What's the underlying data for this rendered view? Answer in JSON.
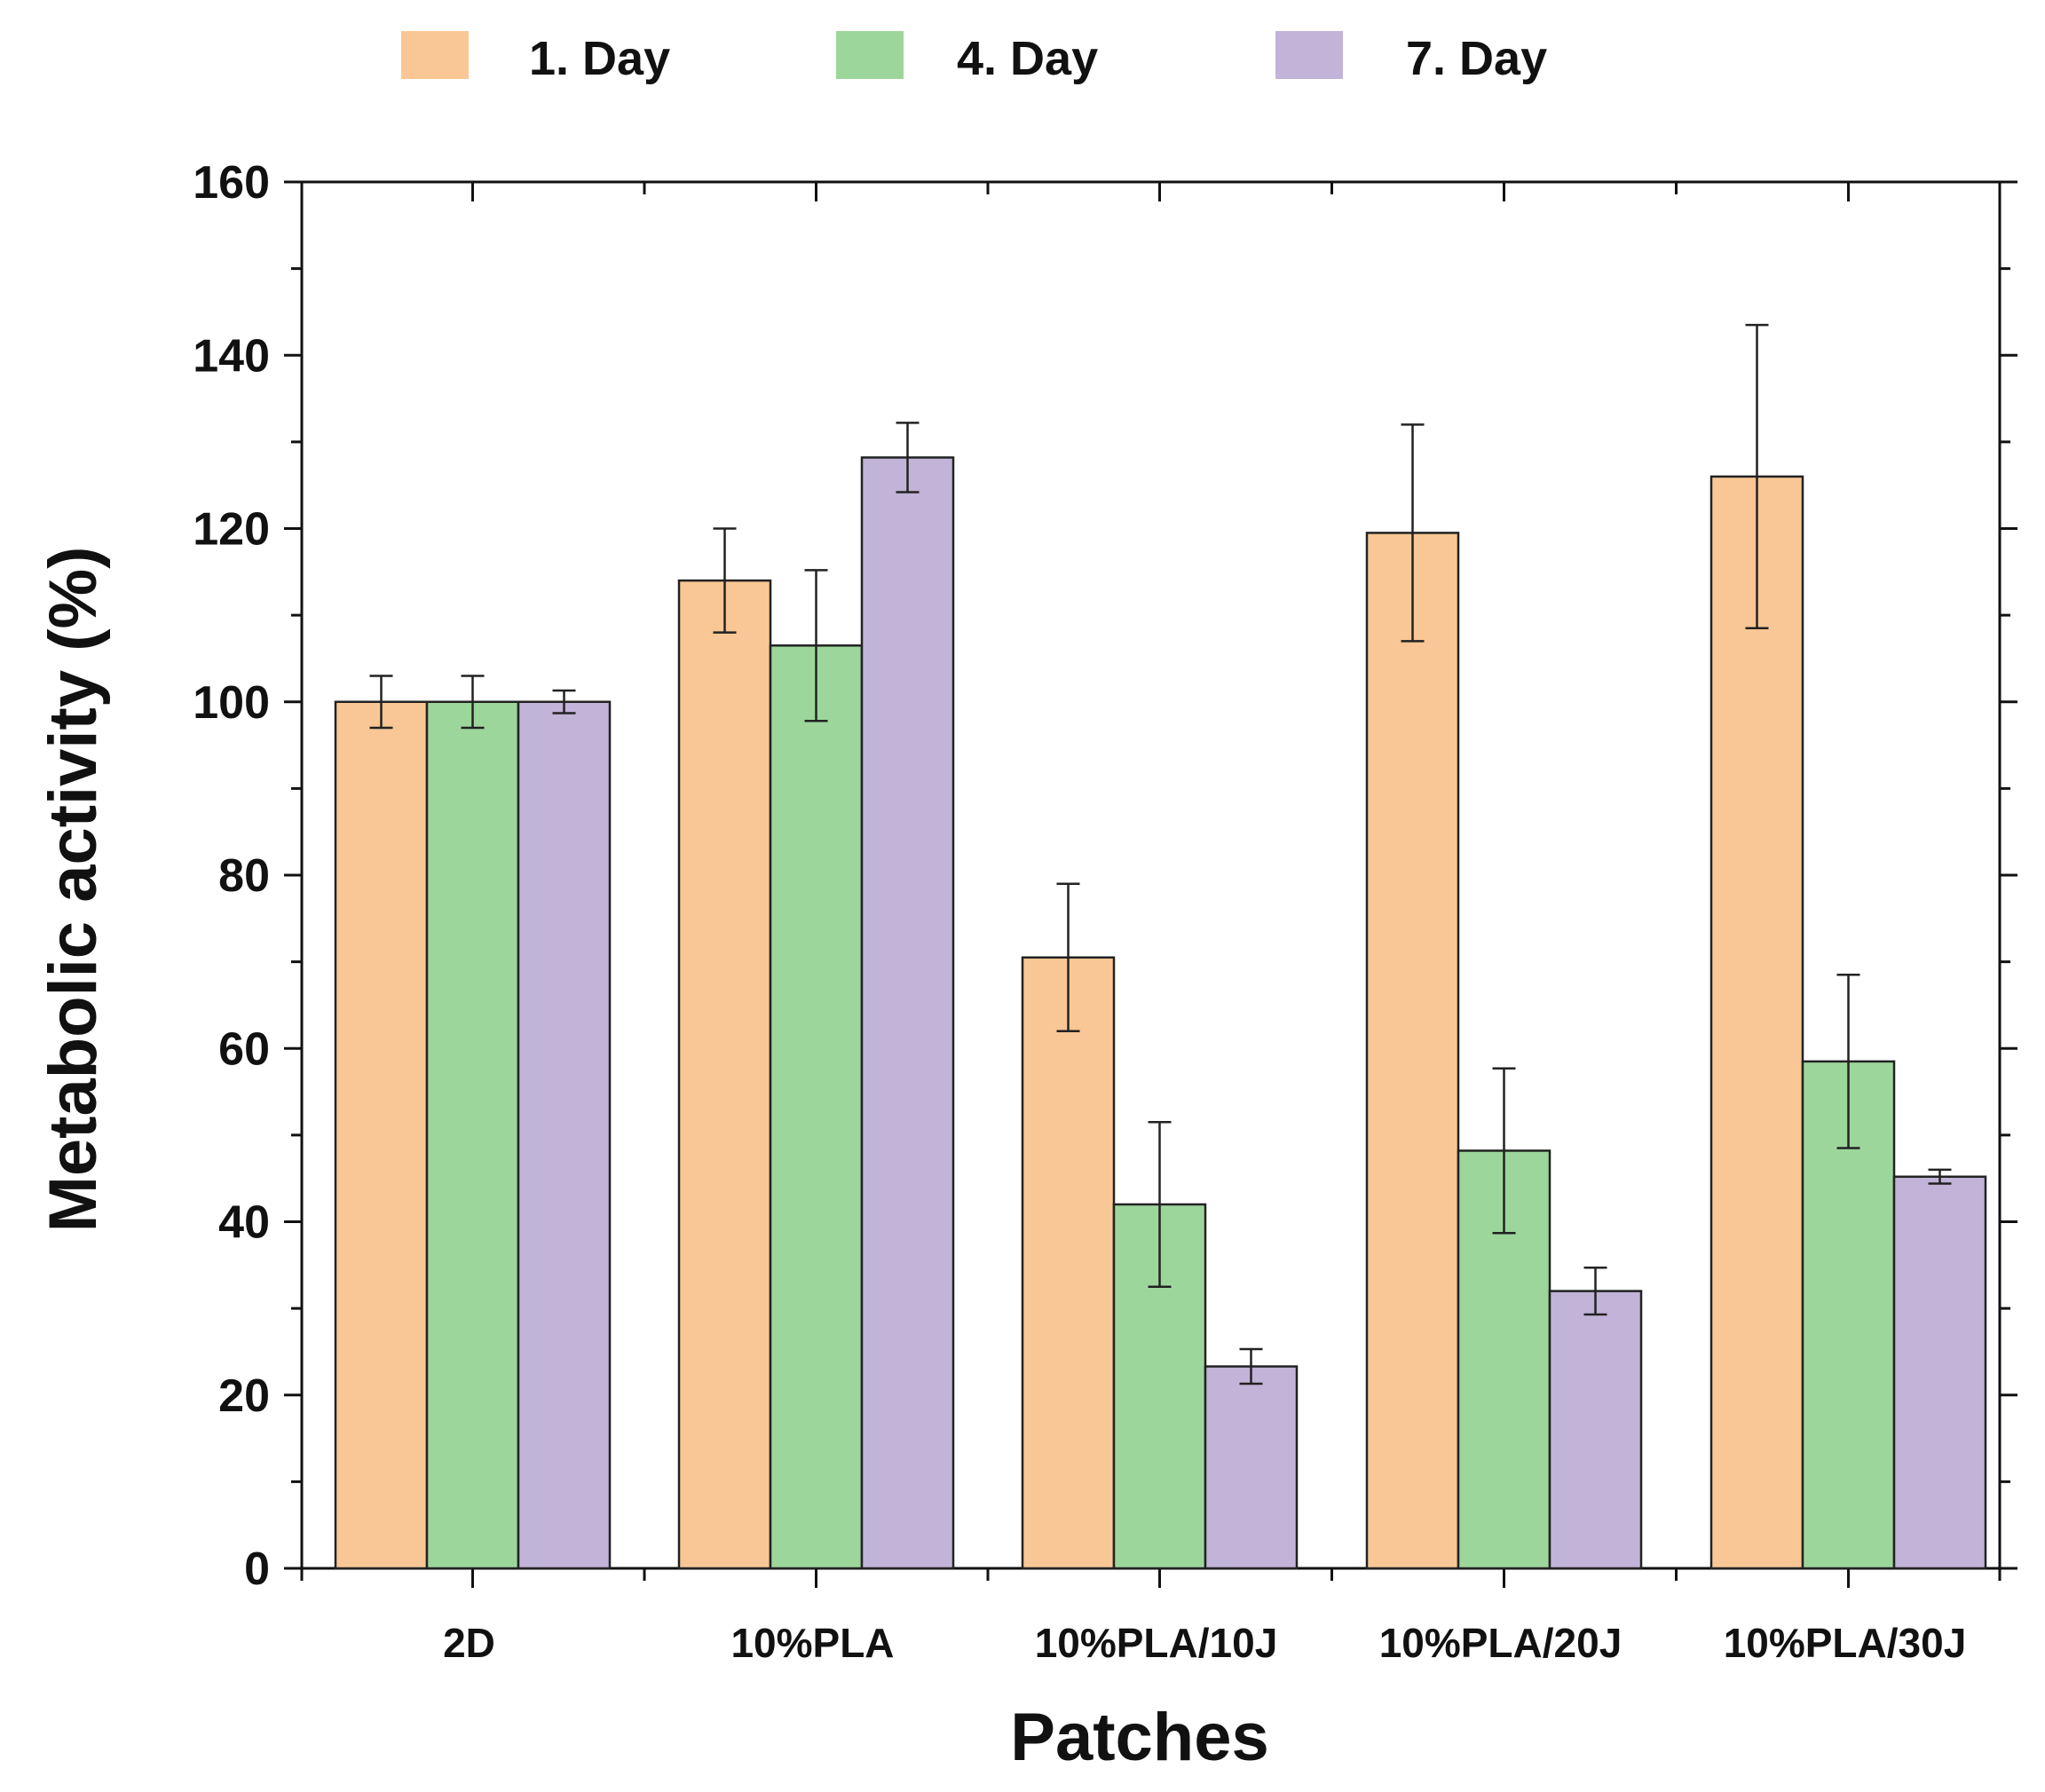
{
  "chart_data": {
    "type": "bar",
    "title": "",
    "xlabel": "Patches",
    "ylabel": "Metabolic activity (%)",
    "ylim": [
      0,
      160
    ],
    "yticks": [
      "0",
      "20",
      "40",
      "60",
      "80",
      "100",
      "120",
      "140",
      "160"
    ],
    "categories": [
      "2D",
      "10%PLA",
      "10%PLA/10J",
      "10%PLA/20J",
      "10%PLA/30J"
    ],
    "legend_position": "top",
    "series": [
      {
        "name": "1. Day",
        "color": "#f9c795",
        "values": [
          100,
          114,
          70.5,
          119.5,
          126
        ],
        "errors": [
          3,
          6,
          8.5,
          12.5,
          17.5
        ]
      },
      {
        "name": "4. Day",
        "color": "#9dd69b",
        "values": [
          100,
          106.5,
          42,
          48.2,
          58.5
        ],
        "errors": [
          3,
          8.7,
          9.5,
          9.5,
          10
        ]
      },
      {
        "name": "7. Day",
        "color": "#c2b3d8",
        "values": [
          100,
          128.2,
          23.3,
          32,
          45.2
        ],
        "errors": [
          1.3,
          4,
          2,
          2.7,
          0.8
        ]
      }
    ]
  }
}
